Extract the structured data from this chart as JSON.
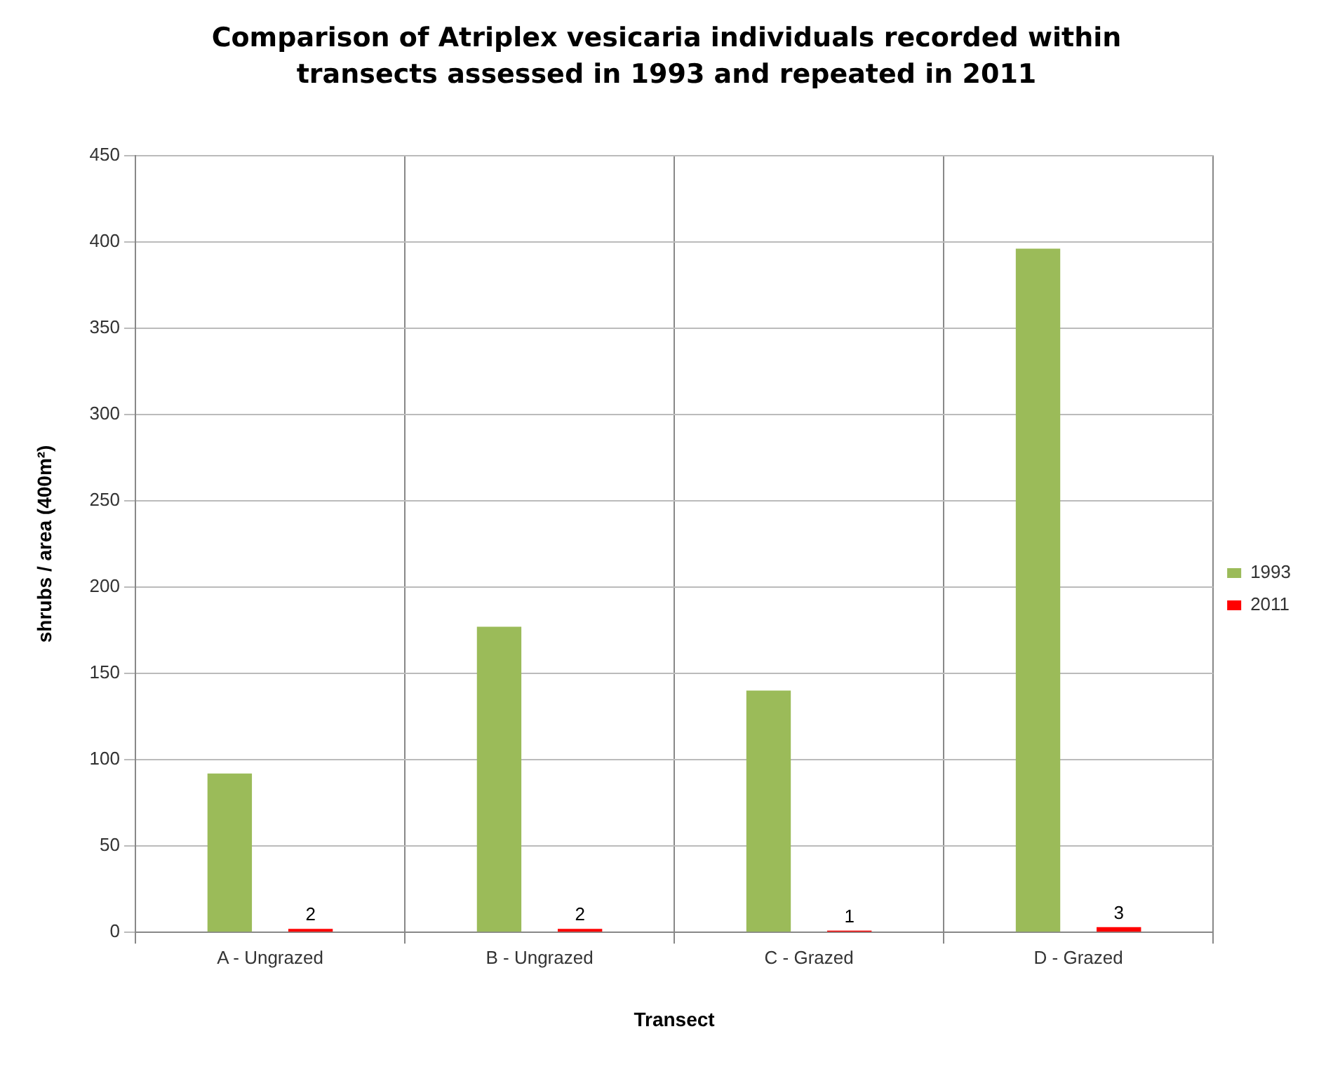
{
  "chart_data": {
    "type": "bar",
    "title": "Comparison of Atriplex vesicaria individuals recorded within transects assessed in 1993 and repeated in 2011",
    "xlabel": "Transect",
    "ylabel": "shrubs / area (400m²)",
    "categories": [
      "A - Ungrazed",
      "B - Ungrazed",
      "C - Grazed",
      "D - Grazed"
    ],
    "series": [
      {
        "name": "1993",
        "color": "#9bbb59",
        "values": [
          92,
          177,
          140,
          396
        ]
      },
      {
        "name": "2011",
        "color": "#ff0000",
        "values": [
          2,
          2,
          1,
          3
        ],
        "value_labels": [
          "2",
          "2",
          "1",
          "3"
        ]
      }
    ],
    "ylim": [
      0,
      450
    ],
    "yticks": [
      0,
      50,
      100,
      150,
      200,
      250,
      300,
      350,
      400,
      450
    ],
    "grid": true,
    "legend": "right"
  }
}
